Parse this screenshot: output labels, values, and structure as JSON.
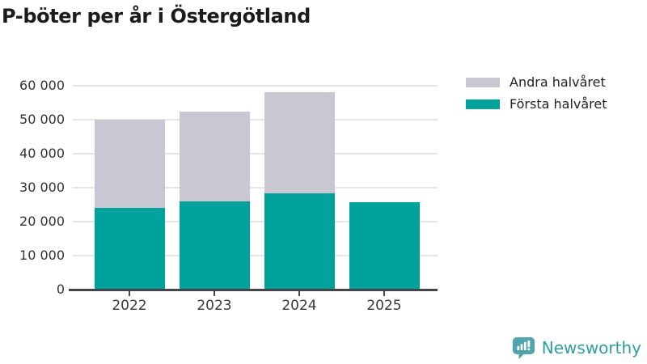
{
  "title": "P-böter per år i Östergötland",
  "legend": [
    {
      "label": "Andra halvåret",
      "color": "#c9c7d1"
    },
    {
      "label": "Första halvåret",
      "color": "#00a29b"
    }
  ],
  "branding": {
    "name": "Newsworthy",
    "icon": "bar-chart-speech-bubble-icon",
    "icon_color": "#4fa5ab",
    "text_color": "#2f9e9f"
  },
  "colors": {
    "first_half": "#00a29b",
    "second_half": "#c9c7d1",
    "gridline": "#e5e5e7",
    "axis": "#454545",
    "title_text": "#1b1b1b",
    "label_text": "#333333"
  },
  "chart_data": {
    "type": "bar",
    "stacked": true,
    "title": "P-böter per år i Östergötland",
    "categories": [
      "2022",
      "2023",
      "2024",
      "2025"
    ],
    "series": [
      {
        "name": "Första halvåret",
        "color": "#00a29b",
        "values": [
          24100,
          25900,
          28300,
          25800
        ]
      },
      {
        "name": "Andra halvåret",
        "color": "#c9c7d1",
        "values": [
          25900,
          26400,
          29700,
          0
        ]
      }
    ],
    "totals": [
      50000,
      52300,
      58000,
      25800
    ],
    "xlabel": "",
    "ylabel": "",
    "ylim": [
      0,
      60000
    ],
    "ytick_step": 10000,
    "ytick_labels": [
      "0",
      "10 000",
      "20 000",
      "30 000",
      "40 000",
      "50 000",
      "60 000"
    ],
    "grid": true,
    "legend_position": "top-right"
  }
}
